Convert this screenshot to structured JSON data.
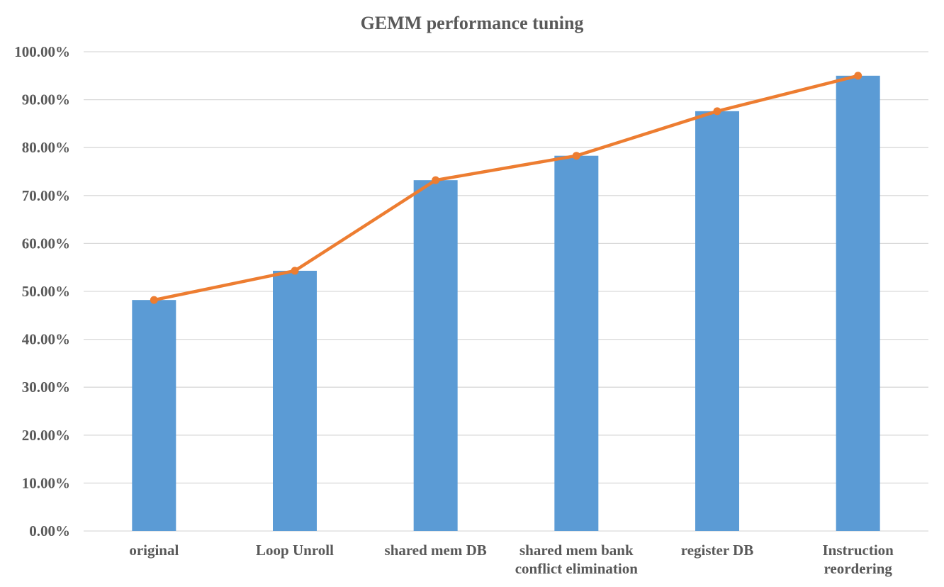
{
  "chart_data": {
    "type": "bar",
    "title": "GEMM performance tuning",
    "categories": [
      [
        "original"
      ],
      [
        "Loop Unroll"
      ],
      [
        "shared mem DB"
      ],
      [
        "shared mem bank",
        "conflict elimination"
      ],
      [
        "register DB"
      ],
      [
        "Instruction",
        "reordering"
      ]
    ],
    "series": [
      {
        "type": "bar",
        "values": [
          48.2,
          54.3,
          73.2,
          78.3,
          87.6,
          95.0
        ],
        "color": "#5B9BD5"
      },
      {
        "type": "line",
        "values": [
          48.2,
          54.3,
          73.2,
          78.3,
          87.6,
          95.0
        ],
        "color": "#ED7D31",
        "markers": true
      }
    ],
    "ylim": [
      0,
      100
    ],
    "ytick_step": 10,
    "ytick_format": "percent-2-decimals",
    "ytick_labels": [
      "0.00%",
      "10.00%",
      "20.00%",
      "30.00%",
      "40.00%",
      "50.00%",
      "60.00%",
      "70.00%",
      "80.00%",
      "90.00%",
      "100.00%"
    ],
    "grid": true,
    "legend": "none",
    "gridline_color": "#D9D9D9",
    "text_color": "#595959"
  }
}
